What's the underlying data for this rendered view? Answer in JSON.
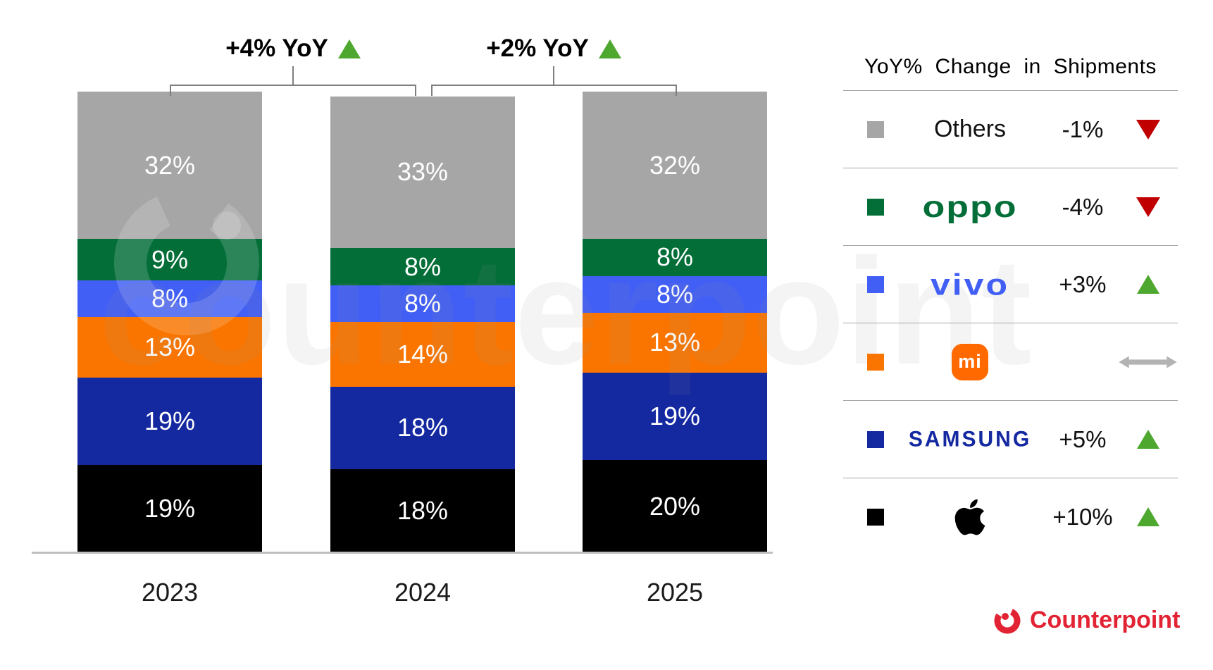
{
  "watermark": {
    "text": "counterpoint"
  },
  "chart_data": {
    "type": "stacked-bar-100",
    "title": "",
    "unit": "%",
    "categories": [
      "2023",
      "2024",
      "2025"
    ],
    "series_order_bottom_to_top": [
      "Apple",
      "Samsung",
      "Xiaomi",
      "vivo",
      "OPPO",
      "Others"
    ],
    "series": [
      {
        "name": "Apple",
        "color": "#000000",
        "values": [
          19,
          18,
          20
        ]
      },
      {
        "name": "Samsung",
        "color": "#1428a0",
        "values": [
          19,
          18,
          19
        ]
      },
      {
        "name": "Xiaomi",
        "color": "#fa7500",
        "values": [
          13,
          14,
          13
        ]
      },
      {
        "name": "vivo",
        "color": "#415ff5",
        "values": [
          8,
          8,
          8
        ]
      },
      {
        "name": "OPPO",
        "color": "#046e38",
        "values": [
          9,
          8,
          8
        ]
      },
      {
        "name": "Others",
        "color": "#a6a6a6",
        "values": [
          32,
          33,
          32
        ]
      }
    ],
    "annotations": [
      {
        "label": "+4% YoY",
        "direction": "up",
        "between": [
          "2023",
          "2024"
        ]
      },
      {
        "label": "+2% YoY",
        "direction": "up",
        "between": [
          "2024",
          "2025"
        ]
      }
    ],
    "ylim": [
      0,
      100
    ],
    "grid": false,
    "legend_position": "right"
  },
  "legend": {
    "title": "YoY% Change in Shipments",
    "rows": [
      {
        "brand": "Others",
        "logo_type": "text",
        "logo_text": "Others",
        "logo_color": "#111111",
        "swatch": "#a6a6a6",
        "change": "-1%",
        "direction": "down"
      },
      {
        "brand": "OPPO",
        "logo_type": "wordmark",
        "logo_text": "oppo",
        "logo_color": "#046e38",
        "swatch": "#046e38",
        "change": "-4%",
        "direction": "down"
      },
      {
        "brand": "vivo",
        "logo_type": "wordmark",
        "logo_text": "vivo",
        "logo_color": "#415ff5",
        "swatch": "#415ff5",
        "change": "+3%",
        "direction": "up"
      },
      {
        "brand": "Xiaomi",
        "logo_type": "mi-badge",
        "logo_text": "mi",
        "logo_color": "#ff6900",
        "swatch": "#fa7500",
        "change": "",
        "direction": "flat"
      },
      {
        "brand": "Samsung",
        "logo_type": "wordmark",
        "logo_text": "SAMSUNG",
        "logo_color": "#1428a0",
        "swatch": "#1428a0",
        "change": "+5%",
        "direction": "up"
      },
      {
        "brand": "Apple",
        "logo_type": "apple-icon",
        "logo_text": "",
        "logo_color": "#000000",
        "swatch": "#000000",
        "change": "+10%",
        "direction": "up"
      }
    ]
  },
  "footer": {
    "brand": "Counterpoint"
  },
  "colors": {
    "up_arrow": "#4ea72e",
    "down_arrow": "#c00000",
    "flat_arrow": "#b3b3b3",
    "axis_line": "#bfbfbf",
    "bracket_line": "#7f7f7f"
  }
}
